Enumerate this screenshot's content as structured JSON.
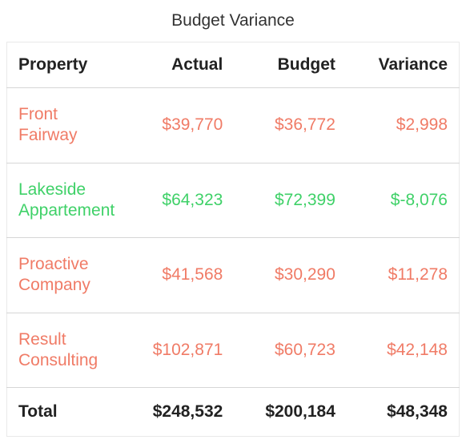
{
  "title": "Budget Variance",
  "colors": {
    "over": "#f07b66",
    "under": "#3fd168",
    "text": "#222222",
    "border": "#d6d6d6"
  },
  "table": {
    "type": "table",
    "columns": [
      {
        "key": "property",
        "label": "Property",
        "align": "left"
      },
      {
        "key": "actual",
        "label": "Actual",
        "align": "right"
      },
      {
        "key": "budget",
        "label": "Budget",
        "align": "right"
      },
      {
        "key": "variance",
        "label": "Variance",
        "align": "right"
      }
    ],
    "rows": [
      {
        "property": "Front Fairway",
        "actual": "$39,770",
        "budget": "$36,772",
        "variance": "$2,998",
        "color": "#f07b66"
      },
      {
        "property": "Lakeside Appartement",
        "actual": "$64,323",
        "budget": "$72,399",
        "variance": "$-8,076",
        "color": "#3fd168"
      },
      {
        "property": "Proactive Company",
        "actual": "$41,568",
        "budget": "$30,290",
        "variance": "$11,278",
        "color": "#f07b66"
      },
      {
        "property": "Result Consulting",
        "actual": "$102,871",
        "budget": "$60,723",
        "variance": "$42,148",
        "color": "#f07b66"
      }
    ],
    "total": {
      "label": "Total",
      "actual": "$248,532",
      "budget": "$200,184",
      "variance": "$48,348"
    }
  }
}
